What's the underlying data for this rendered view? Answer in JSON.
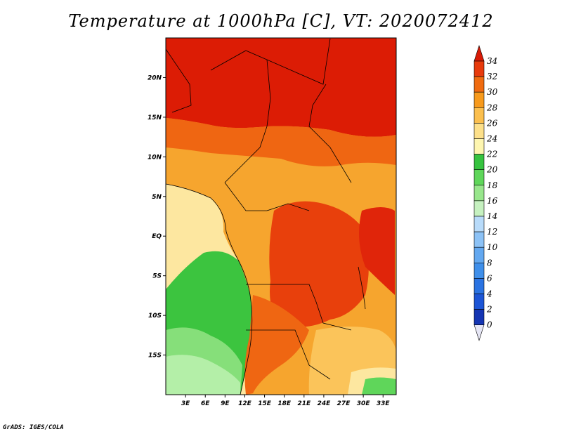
{
  "title": "Temperature at 1000hPa [C], VT: 2020072412",
  "credit": "GrADS: IGES/COLA",
  "map": {
    "lon_range": [
      0,
      35
    ],
    "lat_range": [
      -20,
      25
    ],
    "lat_ticks": [
      "20N",
      "15N",
      "10N",
      "5N",
      "EQ",
      "5S",
      "10S",
      "15S"
    ],
    "lat_tick_values": [
      20,
      15,
      10,
      5,
      0,
      -5,
      -10,
      -15
    ],
    "lon_ticks": [
      "3E",
      "6E",
      "9E",
      "12E",
      "15E",
      "18E",
      "21E",
      "24E",
      "27E",
      "30E",
      "33E"
    ],
    "lon_tick_values": [
      3,
      6,
      9,
      12,
      15,
      18,
      21,
      24,
      27,
      30,
      33
    ]
  },
  "colorbar": {
    "labels": [
      "0",
      "2",
      "4",
      "6",
      "8",
      "10",
      "12",
      "14",
      "16",
      "18",
      "20",
      "22",
      "24",
      "26",
      "28",
      "30",
      "32",
      "34"
    ],
    "colors": [
      "#0b1a78",
      "#1535b3",
      "#1c55d6",
      "#2a73e2",
      "#3f8fea",
      "#63a8f0",
      "#8cc2f6",
      "#b8dbfa",
      "#c6f1c0",
      "#98e68c",
      "#5fd65a",
      "#36c33f",
      "#fef6b0",
      "#fde08a",
      "#fbbf4e",
      "#f79a1c",
      "#f06b10",
      "#e83a0c",
      "#d81a06"
    ]
  }
}
